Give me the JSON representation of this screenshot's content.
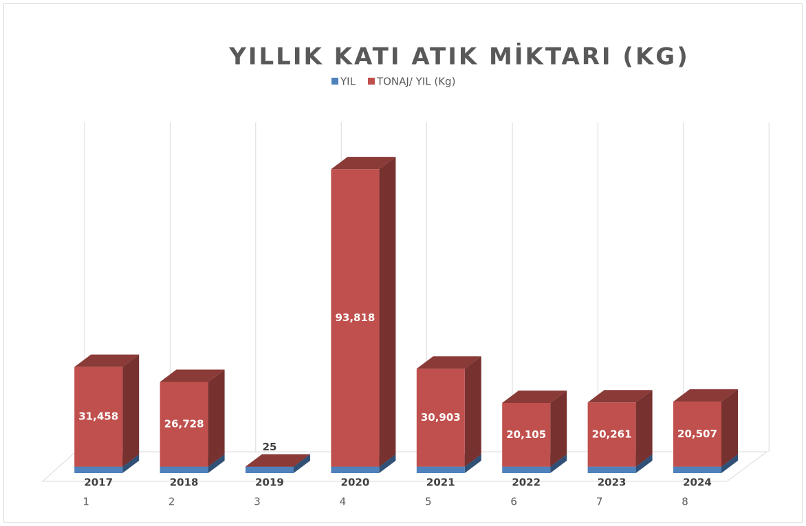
{
  "chart_data": {
    "type": "bar",
    "stacked": true,
    "title": "YILLIK KATI ATIK MİKTARI (KG)",
    "categories": [
      "1",
      "2",
      "3",
      "4",
      "5",
      "6",
      "7",
      "8"
    ],
    "series": [
      {
        "name": "YIL",
        "color": "#4f81bd",
        "values": [
          2017,
          2018,
          2019,
          2020,
          2021,
          2022,
          2023,
          2024
        ]
      },
      {
        "name": "TONAJ/ YIL (Kg)",
        "color": "#c0504d",
        "values": [
          31458,
          26728,
          25,
          93818,
          30903,
          20105,
          20261,
          20507
        ],
        "value_labels": [
          "31,458",
          "26,728",
          "25",
          "93,818",
          "30,903",
          "20,105",
          "20,261",
          "20,507"
        ]
      }
    ],
    "ylim": [
      0,
      100000
    ],
    "legend": "top"
  }
}
